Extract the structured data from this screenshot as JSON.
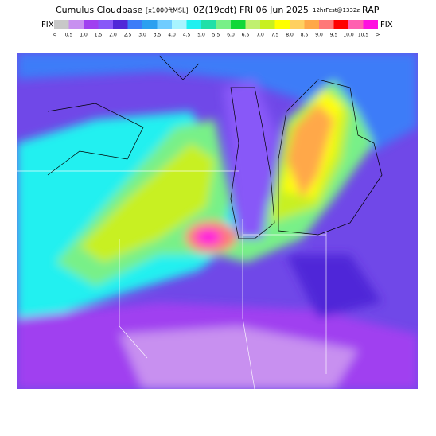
{
  "header": {
    "title": "Cumulus Cloudbase",
    "units": "[x1000ftMSL]",
    "time": "0Z(19cdt) FRI 06 Jun 2025",
    "forecast": "12hrFcst@1332z",
    "model": "RAP"
  },
  "controls": {
    "left": "FIX",
    "right": "FIX"
  },
  "legend": {
    "labels": [
      "<",
      "0.5",
      "1.0",
      "1.5",
      "2.0",
      "2.5",
      "3.0",
      "3.5",
      "4.0",
      "4.5",
      "5.0",
      "5.5",
      "6.0",
      "6.5",
      "7.0",
      "7.5",
      "8.0",
      "8.5",
      "9.0",
      "9.5",
      "10.0",
      "10.5",
      ">"
    ],
    "colors": [
      "#c8c8c8",
      "#c890f0",
      "#a040f0",
      "#8858f8",
      "#5028d8",
      "#3c7cf8",
      "#2ca0f0",
      "#70ccff",
      "#a8f4ff",
      "#20f0f0",
      "#20e0a8",
      "#78f088",
      "#10d838",
      "#c0f070",
      "#c8f020",
      "#ffff00",
      "#ffd060",
      "#ffa848",
      "#ff7878",
      "#ff0000",
      "#ff60b0",
      "#ff10e0"
    ]
  }
}
